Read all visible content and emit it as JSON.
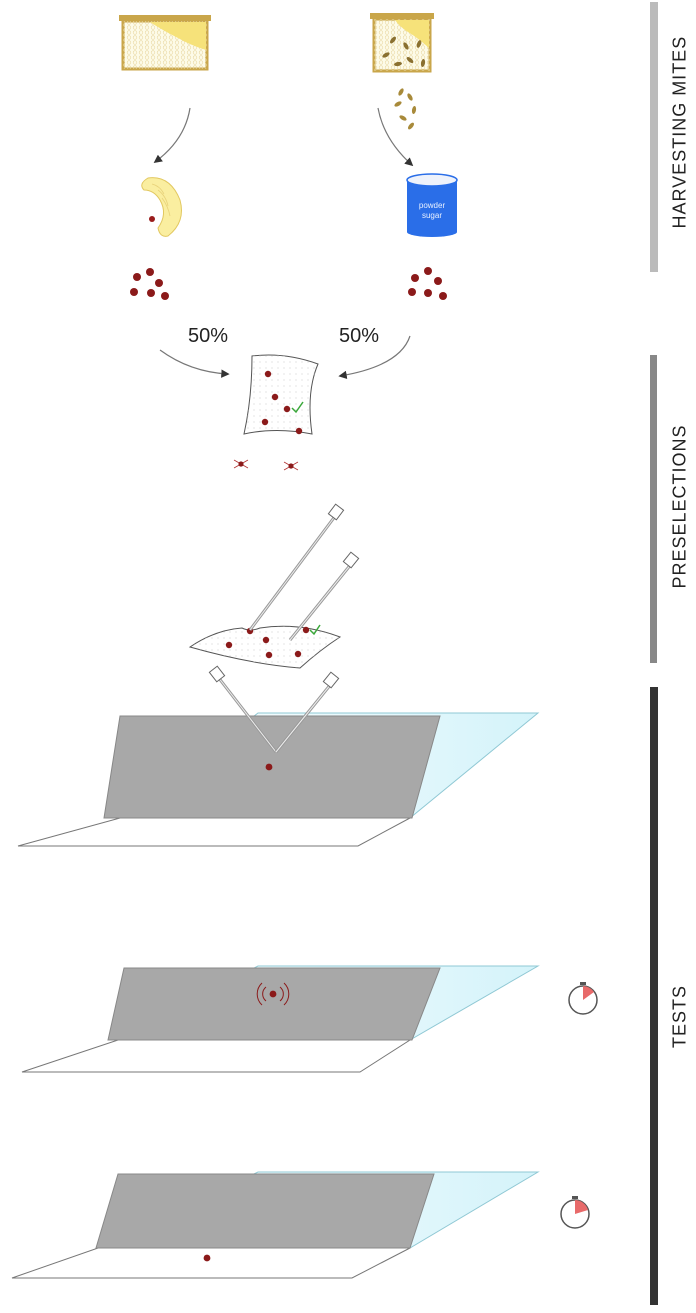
{
  "sections": [
    {
      "label": "HARVESTING MITES",
      "color": "#bbbbbb"
    },
    {
      "label": "PRESELECTIONS",
      "color": "#888888"
    },
    {
      "label": "TESTS",
      "color": "#333333"
    }
  ],
  "flow": {
    "left_percent": "50%",
    "right_percent": "50%"
  },
  "can": {
    "line1": "powder",
    "line2": "sugar"
  },
  "colors": {
    "comb": "#f6e27a",
    "frame": "#c9a64a",
    "mite": "#8b1a1a",
    "can": "#2a6ee8",
    "plate_grey": "#a8a8a8",
    "plate_blue": "#dff6fb",
    "check": "#3aa83a",
    "timer": "#e86a6a"
  }
}
